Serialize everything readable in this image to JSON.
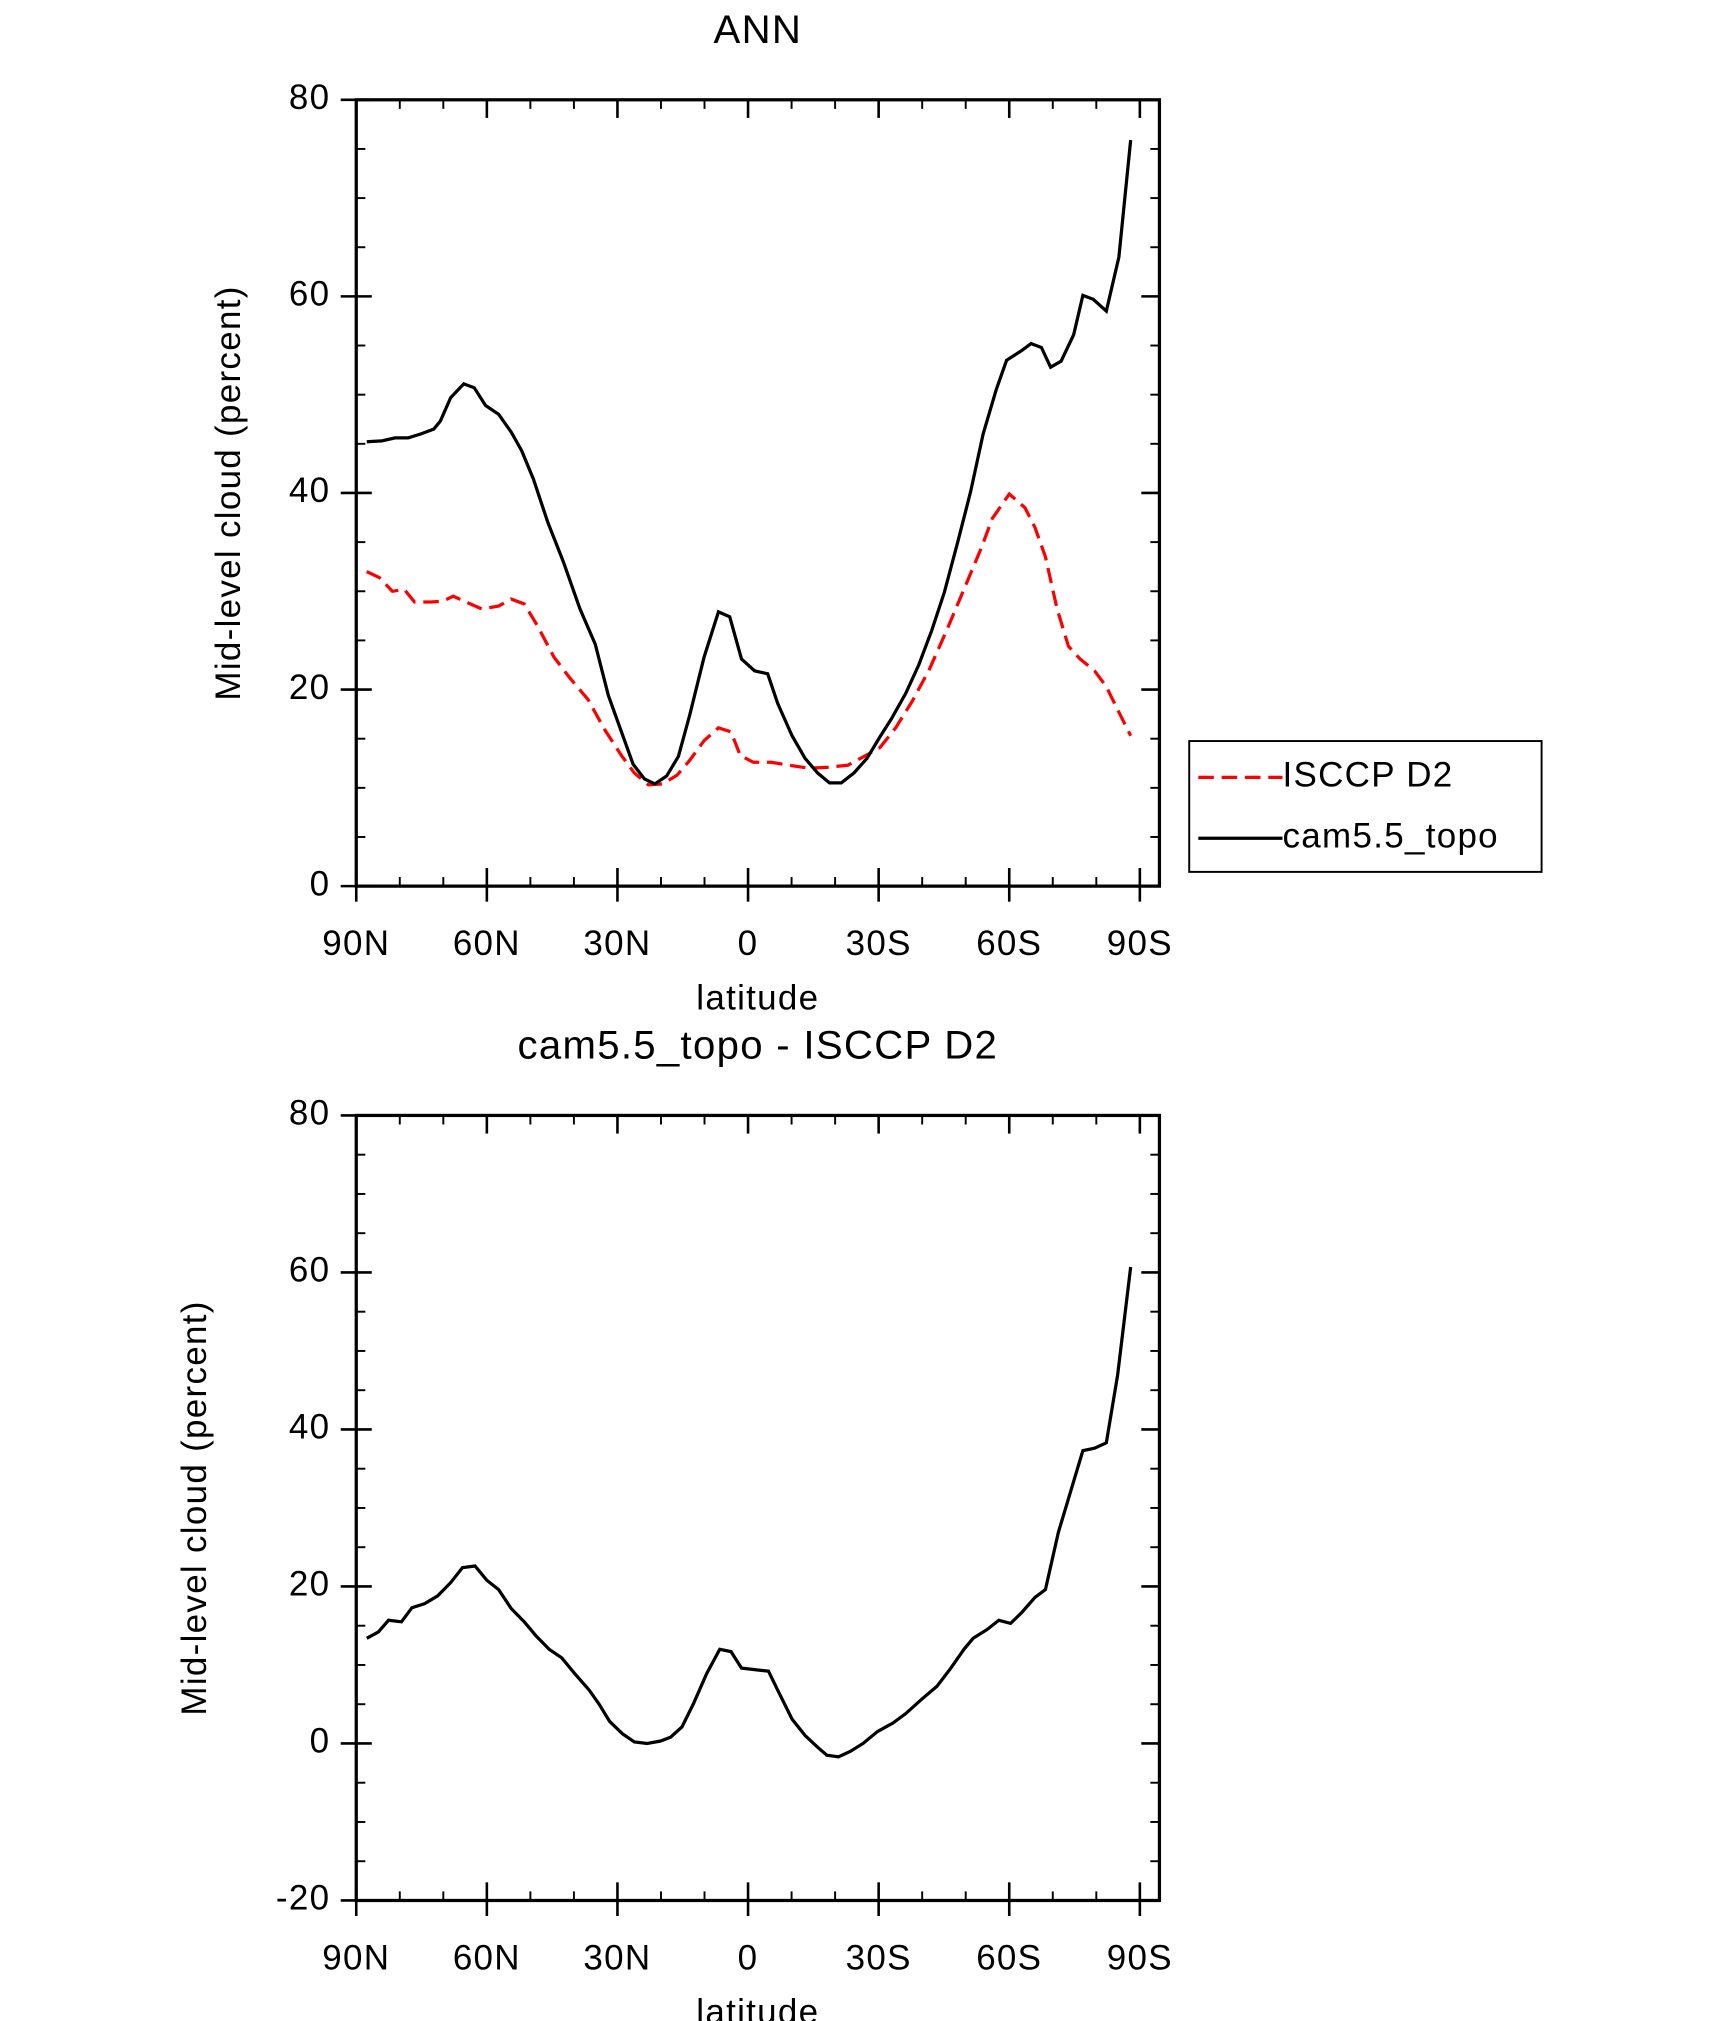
{
  "chart_data": [
    {
      "type": "line",
      "title": "ANN",
      "xlabel": "latitude",
      "ylabel": "Mid-level cloud (percent)",
      "xlim": [
        90,
        -94.5
      ],
      "ylim": [
        0,
        80
      ],
      "xticks": [
        {
          "value": 90,
          "label": "90N"
        },
        {
          "value": 60,
          "label": "60N"
        },
        {
          "value": 30,
          "label": "30N"
        },
        0,
        {
          "value": -30,
          "label": "30S"
        },
        {
          "value": -60,
          "label": "60S"
        },
        {
          "value": -90,
          "label": "90S"
        }
      ],
      "yticks": [
        0,
        20,
        40,
        60,
        80
      ],
      "xminorticks": [
        80,
        70,
        50,
        40,
        20,
        10,
        -10,
        -20,
        -40,
        -50,
        -70,
        -80
      ],
      "yminorticks": [
        5,
        10,
        15,
        25,
        30,
        35,
        45,
        50,
        55,
        65,
        70,
        75
      ],
      "legend": "outside-right",
      "series": [
        {
          "name": "ISCCP D2",
          "color": "#ff0000",
          "dashed": true,
          "x": [
            87.6,
            84.7,
            81.7,
            79.0,
            76.6,
            72.8,
            70.1,
            67.7,
            64.8,
            61.2,
            57.3,
            54.4,
            51.4,
            48.4,
            44.6,
            41.0,
            36.8,
            32.9,
            29.1,
            26.1,
            22.9,
            19.6,
            16.3,
            13.4,
            10.1,
            6.8,
            3.9,
            1.8,
            -1.2,
            -5.3,
            -9.5,
            -14.0,
            -18.4,
            -22.9,
            -26.7,
            -30.3,
            -33.9,
            -37.7,
            -41.6,
            -45.7,
            -49.6,
            -53.5,
            -56.1,
            -60.0,
            -63.6,
            -65.9,
            -68.3,
            -71.0,
            -73.6,
            -76.3,
            -79.6,
            -82.3,
            -85.2,
            -87.9
          ],
          "values": [
            32.0,
            31.4,
            30.0,
            30.2,
            28.9,
            28.9,
            29.0,
            29.5,
            28.9,
            28.2,
            28.5,
            29.2,
            28.7,
            26.5,
            23.3,
            21.2,
            19.0,
            15.9,
            13.3,
            11.5,
            10.3,
            10.4,
            11.3,
            12.8,
            14.8,
            16.1,
            15.7,
            13.3,
            12.6,
            12.6,
            12.3,
            12.0,
            12.1,
            12.3,
            13.2,
            14.1,
            16.1,
            18.8,
            22.0,
            26.1,
            30.2,
            34.3,
            37.4,
            39.9,
            38.5,
            36.5,
            33.5,
            28.2,
            24.4,
            23.1,
            21.9,
            20.3,
            17.7,
            15.3
          ]
        },
        {
          "name": "cam5.5_topo",
          "color": "#000000",
          "dashed": false,
          "x": [
            87.6,
            84.1,
            81.1,
            78.1,
            75.2,
            72.2,
            70.7,
            68.3,
            65.3,
            62.9,
            60.3,
            57.3,
            54.4,
            52.0,
            49.3,
            46.0,
            42.5,
            38.6,
            35.1,
            32.1,
            29.1,
            26.4,
            23.8,
            21.4,
            18.7,
            16.0,
            13.4,
            10.1,
            6.8,
            4.2,
            1.5,
            -1.5,
            -4.5,
            -6.8,
            -10.1,
            -13.1,
            -16.0,
            -18.7,
            -21.4,
            -24.3,
            -27.3,
            -30.3,
            -32.9,
            -36.2,
            -39.2,
            -42.2,
            -45.1,
            -48.1,
            -51.1,
            -54.0,
            -57.0,
            -59.4,
            -62.9,
            -65.0,
            -67.4,
            -69.5,
            -71.9,
            -74.8,
            -76.9,
            -79.3,
            -82.3,
            -85.2,
            -87.9
          ],
          "values": [
            45.2,
            45.3,
            45.6,
            45.6,
            46.0,
            46.5,
            47.3,
            49.7,
            51.1,
            50.7,
            48.9,
            48.0,
            46.2,
            44.3,
            41.4,
            37.0,
            33.1,
            28.2,
            24.6,
            19.4,
            15.7,
            12.4,
            10.9,
            10.4,
            11.2,
            13.2,
            17.4,
            23.3,
            27.9,
            27.4,
            23.1,
            21.9,
            21.6,
            18.6,
            15.3,
            13.0,
            11.5,
            10.5,
            10.5,
            11.5,
            13.0,
            15.2,
            17.0,
            19.6,
            22.5,
            26.0,
            29.9,
            34.9,
            40.1,
            46.0,
            50.5,
            53.5,
            54.5,
            55.2,
            54.8,
            52.8,
            53.4,
            56.1,
            60.1,
            59.7,
            58.5,
            64.0,
            75.9
          ]
        }
      ]
    },
    {
      "type": "line",
      "title": "cam5.5_topo - ISCCP D2",
      "xlabel": "latitude",
      "ylabel": "Mid-level cloud (percent)",
      "xlim": [
        90,
        -94.5
      ],
      "ylim": [
        -20,
        80
      ],
      "xticks": [
        {
          "value": 90,
          "label": "90N"
        },
        {
          "value": 60,
          "label": "60N"
        },
        {
          "value": 30,
          "label": "30N"
        },
        0,
        {
          "value": -30,
          "label": "30S"
        },
        {
          "value": -60,
          "label": "60S"
        },
        {
          "value": -90,
          "label": "90S"
        }
      ],
      "yticks": [
        -20,
        0,
        20,
        40,
        60,
        80
      ],
      "xminorticks": [
        80,
        70,
        50,
        40,
        20,
        10,
        -10,
        -20,
        -40,
        -50,
        -70,
        -80
      ],
      "yminorticks": [
        -15,
        -10,
        -5,
        5,
        10,
        15,
        25,
        30,
        35,
        45,
        50,
        55,
        65,
        70,
        75
      ],
      "series": [
        {
          "color": "#000000",
          "dashed": false,
          "x": [
            87.6,
            84.9,
            82.6,
            79.6,
            77.2,
            74.3,
            71.3,
            68.3,
            65.6,
            62.7,
            60.0,
            57.3,
            54.4,
            51.4,
            48.7,
            45.7,
            42.8,
            39.8,
            36.5,
            34.2,
            31.8,
            28.8,
            26.1,
            23.2,
            20.2,
            17.8,
            15.2,
            12.5,
            9.5,
            6.5,
            3.9,
            1.5,
            -1.5,
            -4.7,
            -6.8,
            -10.1,
            -13.1,
            -16.0,
            -18.1,
            -20.8,
            -23.5,
            -26.4,
            -29.7,
            -33.3,
            -36.2,
            -39.8,
            -43.4,
            -46.6,
            -49.6,
            -51.7,
            -54.9,
            -57.6,
            -60.3,
            -62.9,
            -65.9,
            -68.3,
            -71.3,
            -74.2,
            -76.9,
            -79.6,
            -82.3,
            -84.9,
            -87.9
          ],
          "values": [
            13.4,
            14.2,
            15.7,
            15.5,
            17.3,
            17.8,
            18.8,
            20.5,
            22.4,
            22.6,
            20.8,
            19.6,
            17.2,
            15.5,
            13.7,
            12.0,
            10.9,
            8.9,
            6.8,
            5.0,
            2.8,
            1.2,
            0.2,
            0.0,
            0.3,
            0.8,
            2.1,
            5.1,
            8.9,
            12.0,
            11.7,
            9.6,
            9.4,
            9.2,
            6.8,
            3.1,
            1.0,
            -0.5,
            -1.5,
            -1.7,
            -1.0,
            0.0,
            1.5,
            2.6,
            3.8,
            5.6,
            7.3,
            9.6,
            12.0,
            13.4,
            14.5,
            15.7,
            15.3,
            16.7,
            18.6,
            19.6,
            26.9,
            32.3,
            37.3,
            37.6,
            38.3,
            46.9,
            60.7
          ]
        }
      ]
    }
  ]
}
